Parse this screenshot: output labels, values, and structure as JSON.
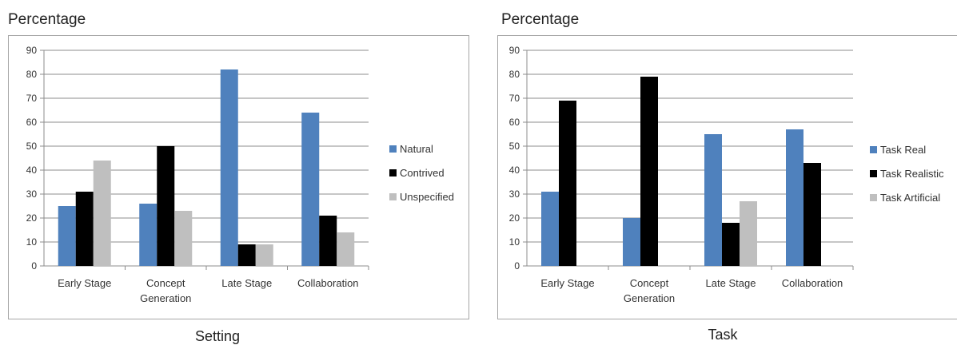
{
  "chart_data": [
    {
      "type": "bar",
      "title": "",
      "ylabel": "Percentage",
      "xlabel": "Setting",
      "ylim": [
        0,
        90
      ],
      "yticks": [
        0,
        10,
        20,
        30,
        40,
        50,
        60,
        70,
        80,
        90
      ],
      "grid": true,
      "legend_position": "right",
      "categories": [
        [
          "Early Stage"
        ],
        [
          "Concept",
          "Generation"
        ],
        [
          "Late Stage"
        ],
        [
          "Collaboration"
        ]
      ],
      "series": [
        {
          "name": "Natural",
          "color": "#4f81bd",
          "values": [
            25,
            26,
            82,
            64
          ]
        },
        {
          "name": "Contrived",
          "color": "#000000",
          "values": [
            31,
            50,
            9,
            21
          ]
        },
        {
          "name": "Unspecified",
          "color": "#bfbfbf",
          "values": [
            44,
            23,
            9,
            14
          ]
        }
      ]
    },
    {
      "type": "bar",
      "title": "",
      "ylabel": "Percentage",
      "xlabel": "Task",
      "ylim": [
        0,
        90
      ],
      "yticks": [
        0,
        10,
        20,
        30,
        40,
        50,
        60,
        70,
        80,
        90
      ],
      "grid": true,
      "legend_position": "right",
      "categories": [
        [
          "Early Stage"
        ],
        [
          "Concept",
          "Generation"
        ],
        [
          "Late Stage"
        ],
        [
          "Collaboration"
        ]
      ],
      "series": [
        {
          "name": "Task Real",
          "color": "#4f81bd",
          "values": [
            31,
            20,
            55,
            57
          ]
        },
        {
          "name": "Task Realistic",
          "color": "#000000",
          "values": [
            69,
            79,
            18,
            43
          ]
        },
        {
          "name": "Task Artificial",
          "color": "#bfbfbf",
          "values": [
            0,
            0,
            27,
            0
          ]
        }
      ]
    }
  ]
}
